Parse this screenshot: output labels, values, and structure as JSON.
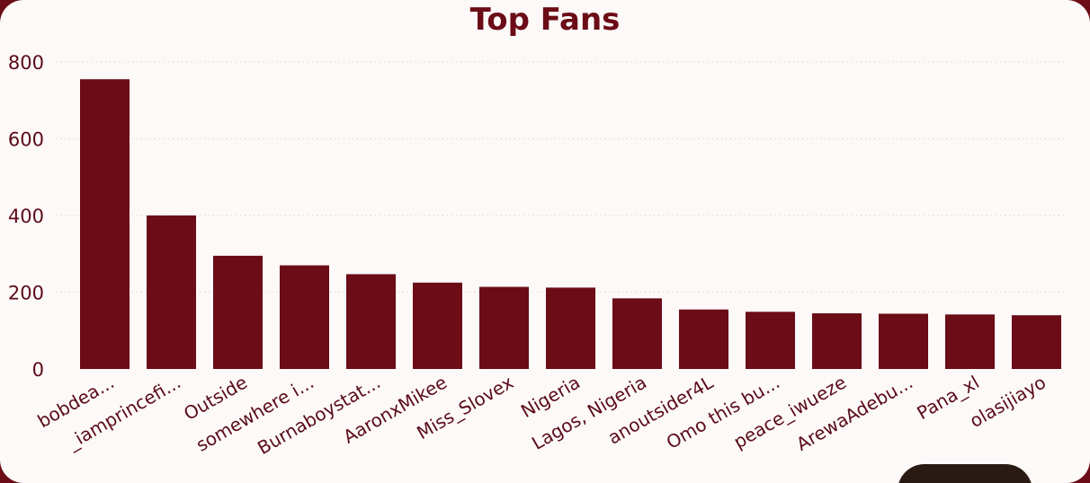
{
  "colors": {
    "bar": "#6b0c17",
    "background": "#fcf9f8",
    "frame": "#6b0c17",
    "text": "#5a0b18"
  },
  "chart_data": {
    "type": "bar",
    "title": "Top Fans",
    "xlabel": "",
    "ylabel": "",
    "ylim": [
      0,
      800
    ],
    "yticks": [
      0,
      200,
      400,
      600,
      800
    ],
    "grid": true,
    "categories": [
      "bobdea...",
      "_iamprincefi...",
      "Outside",
      "somewhere i...",
      "Burnaboystat...",
      "AaronxMikee",
      "Miss_Slovex",
      "Nigeria",
      "Lagos, Nigeria",
      "anoutsider4L",
      "Omo this bu...",
      "peace_iwueze",
      "ArewaAdebu...",
      "Pana_xl",
      "olasijiayo"
    ],
    "values": [
      755,
      400,
      295,
      270,
      247,
      225,
      214,
      212,
      184,
      155,
      149,
      145,
      144,
      142,
      140
    ]
  }
}
